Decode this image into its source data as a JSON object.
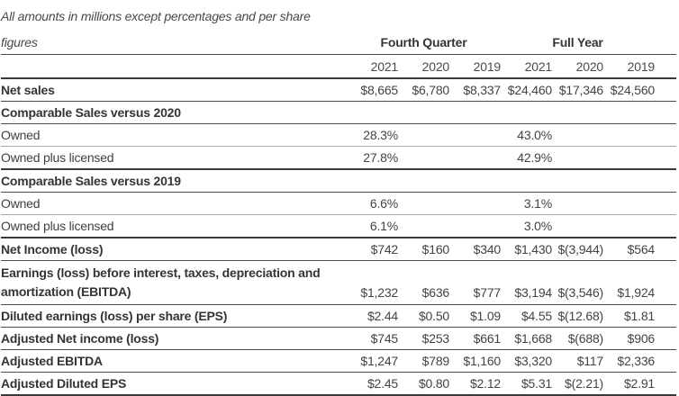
{
  "note": {
    "line1": "All amounts in millions except percentages and per share",
    "line2": "figures"
  },
  "header": {
    "groups": [
      "Fourth Quarter",
      "Full Year"
    ],
    "years": [
      "2021",
      "2020",
      "2019",
      "2021",
      "2020",
      "2019"
    ]
  },
  "table": {
    "rows": [
      {
        "label": "Net sales",
        "values": [
          "$8,665",
          "$6,780",
          "$8,337",
          "$24,460",
          "$17,346",
          "$24,560"
        ]
      },
      {
        "label": "Comparable Sales versus 2020",
        "values": [
          "",
          "",
          "",
          "",
          "",
          ""
        ]
      },
      {
        "label": "Owned",
        "values": [
          "28.3%",
          "",
          "",
          "43.0%",
          "",
          ""
        ]
      },
      {
        "label": "Owned plus licensed",
        "values": [
          "27.8%",
          "",
          "",
          "42.9%",
          "",
          ""
        ]
      },
      {
        "label": "Comparable Sales versus 2019",
        "values": [
          "",
          "",
          "",
          "",
          "",
          ""
        ]
      },
      {
        "label": "Owned",
        "values": [
          "6.6%",
          "",
          "",
          "3.1%",
          "",
          ""
        ]
      },
      {
        "label": "Owned plus licensed",
        "values": [
          "6.1%",
          "",
          "",
          "3.0%",
          "",
          ""
        ]
      },
      {
        "label": "Net Income (loss)",
        "values": [
          "$742",
          "$160",
          "$340",
          "$1,430",
          "$(3,944)",
          "$564"
        ]
      },
      {
        "label_line1": "Earnings (loss) before interest, taxes, depreciation and",
        "label_line2": "amortization (EBITDA)",
        "values": [
          "$1,232",
          "$636",
          "$777",
          "$3,194",
          "$(3,546)",
          "$1,924"
        ]
      },
      {
        "label": "Diluted earnings (loss) per share (EPS)",
        "values": [
          "$2.44",
          "$0.50",
          "$1.09",
          "$4.55",
          "$(12.68)",
          "$1.81"
        ]
      },
      {
        "label": "Adjusted Net income (loss)",
        "values": [
          "$745",
          "$253",
          "$661",
          "$1,668",
          "$(688)",
          "$906"
        ]
      },
      {
        "label": "Adjusted EBITDA",
        "values": [
          "$1,247",
          "$789",
          "$1,160",
          "$3,320",
          "$117",
          "$2,336"
        ]
      },
      {
        "label": "Adjusted Diluted EPS",
        "values": [
          "$2.45",
          "$0.80",
          "$2.12",
          "$5.31",
          "$(2.21)",
          "$2.91"
        ]
      }
    ]
  },
  "colors": {
    "background": "#ffffff",
    "text": "#3f4042",
    "bold_text": "#333436",
    "rule_dark": "#4c4c4e",
    "rule_thick": "#3a3a3c",
    "rule_light": "#a9a9ab"
  }
}
